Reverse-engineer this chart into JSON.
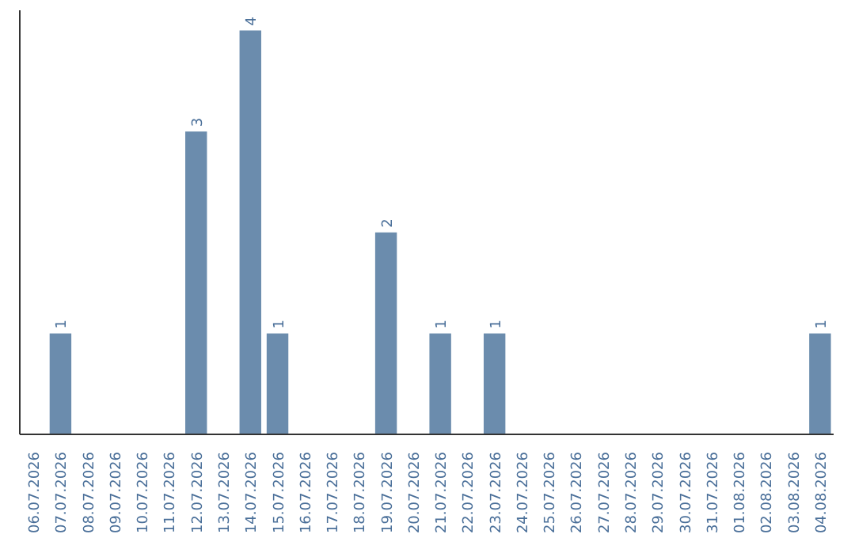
{
  "chart_data": {
    "type": "bar",
    "categories": [
      "06.07.2026",
      "07.07.2026",
      "08.07.2026",
      "09.07.2026",
      "10.07.2026",
      "11.07.2026",
      "12.07.2026",
      "13.07.2026",
      "14.07.2026",
      "15.07.2026",
      "16.07.2026",
      "17.07.2026",
      "18.07.2026",
      "19.07.2026",
      "20.07.2026",
      "21.07.2026",
      "22.07.2026",
      "23.07.2026",
      "24.07.2026",
      "25.07.2026",
      "26.07.2026",
      "27.07.2026",
      "28.07.2026",
      "29.07.2026",
      "30.07.2026",
      "31.07.2026",
      "01.08.2026",
      "02.08.2026",
      "03.08.2026",
      "04.08.2026"
    ],
    "values": [
      0,
      1,
      0,
      0,
      0,
      0,
      3,
      0,
      4,
      1,
      0,
      0,
      0,
      2,
      0,
      1,
      0,
      1,
      0,
      0,
      0,
      0,
      0,
      0,
      0,
      0,
      0,
      0,
      0,
      1
    ],
    "value_labels": [
      null,
      "1",
      null,
      null,
      null,
      null,
      "3",
      null,
      "4",
      "1",
      null,
      null,
      null,
      "2",
      null,
      "1",
      null,
      "1",
      null,
      null,
      null,
      null,
      null,
      null,
      null,
      null,
      null,
      null,
      null,
      "1"
    ],
    "color": "#6b8cad",
    "ylim": [
      0,
      4.2
    ],
    "tick_labels": "x",
    "grid": false
  }
}
